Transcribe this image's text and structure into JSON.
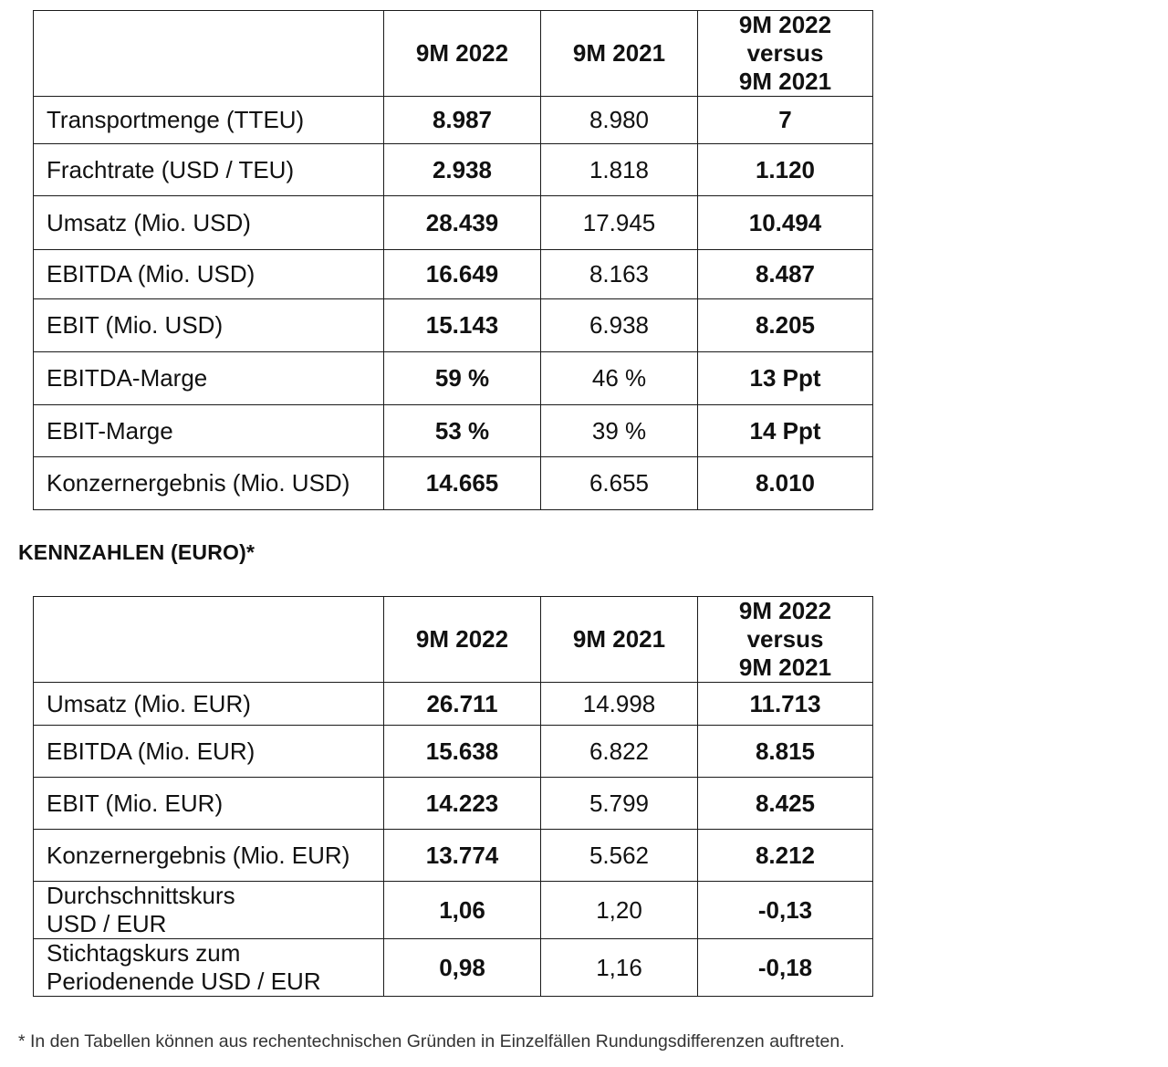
{
  "usd_table": {
    "headers": [
      "",
      "9M 2022",
      "9M 2021",
      "9M 2022 versus 9M 2021"
    ],
    "header_versus_lines": [
      "9M 2022",
      "versus",
      "9M 2021"
    ],
    "rows": [
      {
        "label": "Transportmenge (TTEU)",
        "y2022": "8.987",
        "y2021": "8.980",
        "diff": "7"
      },
      {
        "label": "Frachtrate (USD / TEU)",
        "y2022": "2.938",
        "y2021": "1.818",
        "diff": "1.120"
      },
      {
        "label": "Umsatz (Mio. USD)",
        "y2022": "28.439",
        "y2021": "17.945",
        "diff": "10.494"
      },
      {
        "label": "EBITDA (Mio. USD)",
        "y2022": "16.649",
        "y2021": "8.163",
        "diff": "8.487"
      },
      {
        "label": "EBIT (Mio. USD)",
        "y2022": "15.143",
        "y2021": "6.938",
        "diff": "8.205"
      },
      {
        "label": "EBITDA-Marge",
        "y2022": "59 %",
        "y2021": "46 %",
        "diff": "13 Ppt"
      },
      {
        "label": "EBIT-Marge",
        "y2022": "53 %",
        "y2021": "39 %",
        "diff": "14 Ppt"
      },
      {
        "label": "Konzernergebnis (Mio. USD)",
        "y2022": "14.665",
        "y2021": "6.655",
        "diff": "8.010"
      }
    ]
  },
  "section_heading": "KENNZAHLEN (EURO)*",
  "eur_table": {
    "headers": [
      "",
      "9M 2022",
      "9M 2021",
      "9M 2022 versus 9M 2021"
    ],
    "header_versus_lines": [
      "9M 2022",
      "versus",
      "9M 2021"
    ],
    "rows": [
      {
        "label": "Umsatz (Mio. EUR)",
        "y2022": "26.711",
        "y2021": "14.998",
        "diff": "11.713"
      },
      {
        "label": "EBITDA (Mio. EUR)",
        "y2022": "15.638",
        "y2021": "6.822",
        "diff": "8.815"
      },
      {
        "label": "EBIT (Mio. EUR)",
        "y2022": "14.223",
        "y2021": "5.799",
        "diff": "8.425"
      },
      {
        "label": "Konzernergebnis (Mio. EUR)",
        "y2022": "13.774",
        "y2021": "5.562",
        "diff": "8.212"
      },
      {
        "label_lines": [
          "Durchschnittskurs",
          "USD / EUR"
        ],
        "y2022": "1,06",
        "y2021": "1,20",
        "diff": "-0,13"
      },
      {
        "label_lines": [
          "Stichtagskurs zum",
          "Periodenende USD / EUR"
        ],
        "y2022": "0,98",
        "y2021": "1,16",
        "diff": "-0,18"
      }
    ]
  },
  "footnote": "* In den Tabellen können aus rechentechnischen Gründen in Einzelfällen Rundungsdifferenzen auftreten."
}
